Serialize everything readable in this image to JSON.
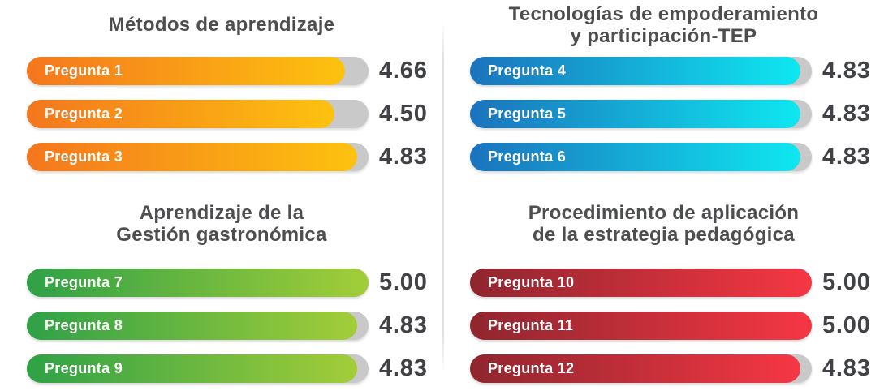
{
  "page": {
    "background": "#ffffff",
    "divider_color": "#e0e0e0",
    "title_text_color": "#4d4e50",
    "value_text_color": "#404245",
    "bar_label_text_color": "#ffffff"
  },
  "chart_data": [
    {
      "type": "bar",
      "orientation": "horizontal",
      "title": "Métodos de aprendizaje",
      "title_lines": [
        "Métodos de aprendizaje"
      ],
      "categories": [
        "Pregunta 1",
        "Pregunta 2",
        "Pregunta 3"
      ],
      "values": [
        4.66,
        4.5,
        4.83
      ],
      "value_labels": [
        "4.66",
        "4.50",
        "4.83"
      ],
      "xlim": [
        0,
        5
      ],
      "legend": "none",
      "grid": "off",
      "bar_color_start": "#f4771e",
      "bar_color_end": "#fdc20f",
      "track_color": "#c9c9c9"
    },
    {
      "type": "bar",
      "orientation": "horizontal",
      "title": "Tecnologías de empoderamiento y participación-TEP",
      "title_lines": [
        "Tecnologías de empoderamiento",
        "y participación-TEP"
      ],
      "categories": [
        "Pregunta 4",
        "Pregunta 5",
        "Pregunta 6"
      ],
      "values": [
        4.83,
        4.83,
        4.83
      ],
      "value_labels": [
        "4.83",
        "4.83",
        "4.83"
      ],
      "xlim": [
        0,
        5
      ],
      "legend": "none",
      "grid": "off",
      "bar_color_start": "#1b73bd",
      "bar_color_end": "#0ee7f0",
      "track_color": "#c9c9c9"
    },
    {
      "type": "bar",
      "orientation": "horizontal",
      "title": "Aprendizaje de la Gestión gastronómica",
      "title_lines": [
        "Aprendizaje de la",
        "Gestión gastronómica"
      ],
      "categories": [
        "Pregunta 7",
        "Pregunta 8",
        "Pregunta 9"
      ],
      "values": [
        5.0,
        4.83,
        4.83
      ],
      "value_labels": [
        "5.00",
        "4.83",
        "4.83"
      ],
      "xlim": [
        0,
        5
      ],
      "legend": "none",
      "grid": "off",
      "bar_color_start": "#2fa147",
      "bar_color_end": "#a3cd39",
      "track_color": "#c9c9c9"
    },
    {
      "type": "bar",
      "orientation": "horizontal",
      "title": "Procedimiento de aplicación de la estrategia pedagógica",
      "title_lines": [
        "Procedimiento de aplicación",
        "de la estrategia pedagógica"
      ],
      "categories": [
        "Pregunta 10",
        "Pregunta 11",
        "Pregunta 12"
      ],
      "values": [
        5.0,
        5.0,
        4.83
      ],
      "value_labels": [
        "5.00",
        "5.00",
        "4.83"
      ],
      "xlim": [
        0,
        5
      ],
      "legend": "none",
      "grid": "off",
      "bar_color_start": "#8f262e",
      "bar_color_end": "#f63744",
      "track_color": "#c9c9c9"
    }
  ]
}
